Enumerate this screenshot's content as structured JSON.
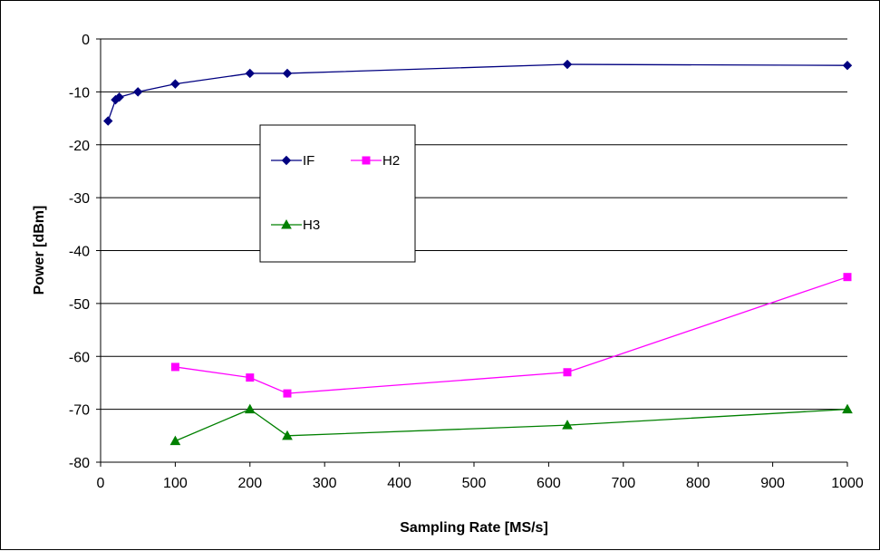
{
  "chart_data": {
    "type": "line",
    "xlabel": "Sampling Rate [MS/s]",
    "ylabel": "Power [dBm]",
    "xlim": [
      0,
      1000
    ],
    "ylim": [
      -80,
      0
    ],
    "xticks": [
      0,
      100,
      200,
      300,
      400,
      500,
      600,
      700,
      800,
      900,
      1000
    ],
    "yticks": [
      0,
      -10,
      -20,
      -30,
      -40,
      -50,
      -60,
      -70,
      -80
    ],
    "grid": "horizontal",
    "legend_position": "upper-left-inside",
    "series": [
      {
        "name": "IF",
        "color": "#000080",
        "marker": "diamond",
        "x": [
          10,
          20,
          25,
          50,
          100,
          200,
          250,
          625,
          1000
        ],
        "y": [
          -15.5,
          -11.5,
          -11,
          -10,
          -8.5,
          -6.5,
          -6.5,
          -4.8,
          -5
        ]
      },
      {
        "name": "H2",
        "color": "#FF00FF",
        "marker": "square",
        "x": [
          100,
          200,
          250,
          625,
          1000
        ],
        "y": [
          -62,
          -64,
          -67,
          -63,
          -45
        ]
      },
      {
        "name": "H3",
        "color": "#008000",
        "marker": "triangle",
        "x": [
          100,
          200,
          250,
          625,
          1000
        ],
        "y": [
          -76,
          -70,
          -75,
          -73,
          -70
        ]
      }
    ]
  }
}
